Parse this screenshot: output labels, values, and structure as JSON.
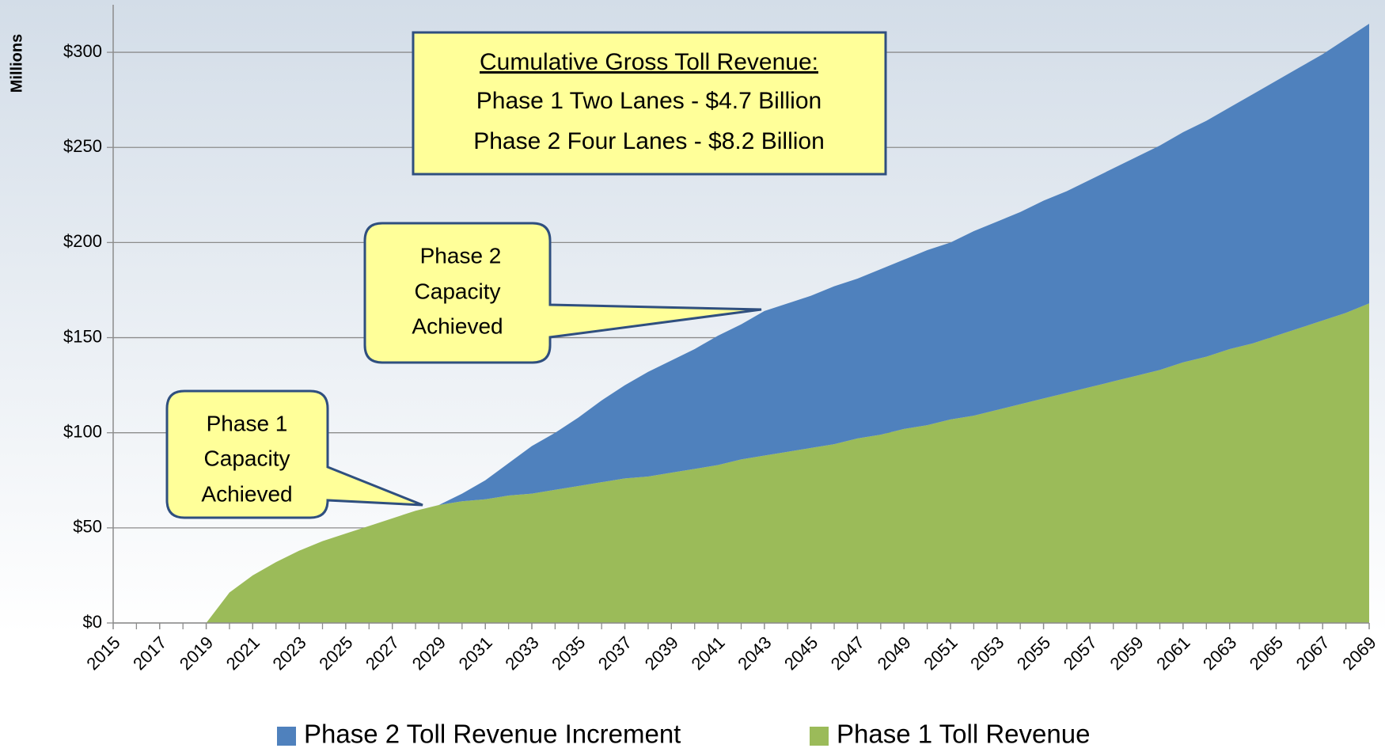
{
  "chart_data": {
    "type": "area",
    "y_label": "Millions",
    "x": [
      2015,
      2016,
      2017,
      2018,
      2019,
      2020,
      2021,
      2022,
      2023,
      2024,
      2025,
      2026,
      2027,
      2028,
      2029,
      2030,
      2031,
      2032,
      2033,
      2034,
      2035,
      2036,
      2037,
      2038,
      2039,
      2040,
      2041,
      2042,
      2043,
      2044,
      2045,
      2046,
      2047,
      2048,
      2049,
      2050,
      2051,
      2052,
      2053,
      2054,
      2055,
      2056,
      2057,
      2058,
      2059,
      2060,
      2061,
      2062,
      2063,
      2064,
      2065,
      2066,
      2067,
      2068,
      2069
    ],
    "series": [
      {
        "name": "Phase 2 Toll Revenue Increment",
        "color": "#4f81bd",
        "values": [
          0,
          0,
          0,
          0,
          0,
          0,
          0,
          0,
          0,
          0,
          0,
          0,
          0,
          0,
          0,
          4,
          10,
          17,
          25,
          30,
          36,
          43,
          49,
          55,
          59,
          63,
          68,
          71,
          76,
          78,
          80,
          83,
          84,
          87,
          89,
          92,
          93,
          97,
          99,
          101,
          104,
          106,
          109,
          112,
          115,
          118,
          121,
          124,
          127,
          131,
          134,
          137,
          140,
          144,
          147
        ]
      },
      {
        "name": "Phase 1 Toll Revenue",
        "color": "#9bbb59",
        "values": [
          0,
          0,
          0,
          0,
          0,
          16,
          25,
          32,
          38,
          43,
          47,
          51,
          55,
          59,
          62,
          64,
          65,
          67,
          68,
          70,
          72,
          74,
          76,
          77,
          79,
          81,
          83,
          86,
          88,
          90,
          92,
          94,
          97,
          99,
          102,
          104,
          107,
          109,
          112,
          115,
          118,
          121,
          124,
          127,
          130,
          133,
          137,
          140,
          144,
          147,
          151,
          155,
          159,
          163,
          168
        ]
      }
    ],
    "stacked": true,
    "xlim": [
      2015,
      2069
    ],
    "xticks": [
      2015,
      2017,
      2019,
      2021,
      2023,
      2025,
      2027,
      2029,
      2031,
      2033,
      2035,
      2037,
      2039,
      2041,
      2043,
      2045,
      2047,
      2049,
      2051,
      2053,
      2055,
      2057,
      2059,
      2061,
      2063,
      2065,
      2067,
      2069
    ],
    "ylim": [
      0,
      325
    ],
    "yticks": [
      {
        "value": 0,
        "label": "$0"
      },
      {
        "value": 50,
        "label": "$50"
      },
      {
        "value": 100,
        "label": "$100"
      },
      {
        "value": 150,
        "label": "$150"
      },
      {
        "value": 200,
        "label": "$200"
      },
      {
        "value": 250,
        "label": "$250"
      },
      {
        "value": 300,
        "label": "$300"
      }
    ],
    "grid": true,
    "legend": "bottom",
    "annotations": {
      "summary": [
        "Cumulative Gross Toll Revenue:",
        "Phase 1 Two Lanes - $4.7 Billion",
        "Phase 2 Four Lanes - $8.2 Billion"
      ],
      "phase2_callout": [
        "Phase 2",
        "Capacity",
        "Achieved"
      ],
      "phase1_callout": [
        "Phase 1",
        "Capacity",
        "Achieved"
      ]
    }
  }
}
